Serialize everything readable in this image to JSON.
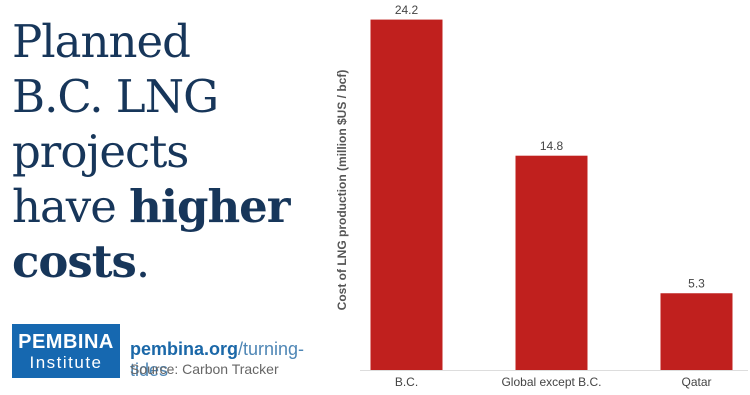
{
  "headline": {
    "lines": [
      "Planned",
      "B.C. LNG",
      "projects",
      "have ",
      "higher",
      "costs",
      "."
    ]
  },
  "logo": {
    "line1": "PEMBINA",
    "line2": "Institute"
  },
  "link": {
    "domain": "pembina.org",
    "path": "/turning-tides"
  },
  "source": "Source: Carbon Tracker",
  "chart_data": {
    "type": "bar",
    "y_label": "Cost of LNG production (million $US / bcf)",
    "categories": [
      "B.C.",
      "Global except B.C.",
      "Qatar"
    ],
    "values": [
      24.2,
      14.8,
      5.3
    ],
    "color": "#c0201e",
    "ylim": [
      0,
      25
    ]
  }
}
